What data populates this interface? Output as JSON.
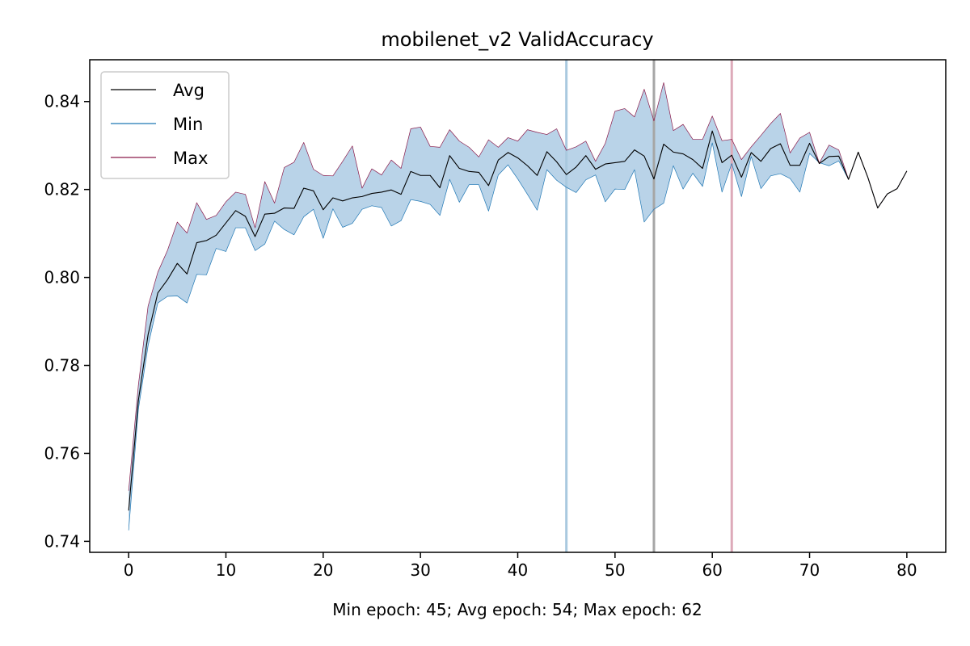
{
  "chart_data": {
    "type": "line",
    "title": "mobilenet_v2 ValidAccuracy",
    "xlabel": "Min epoch: 45; Avg epoch: 54; Max epoch: 62",
    "ylabel": "",
    "xlim": [
      -4,
      84
    ],
    "ylim": [
      0.7375,
      0.8495
    ],
    "xticks": [
      0,
      10,
      20,
      30,
      40,
      50,
      60,
      70,
      80
    ],
    "xtick_labels": [
      "0",
      "10",
      "20",
      "30",
      "40",
      "50",
      "60",
      "70",
      "80"
    ],
    "yticks": [
      0.74,
      0.76,
      0.78,
      0.8,
      0.82,
      0.84
    ],
    "ytick_labels": [
      "0.74",
      "0.76",
      "0.78",
      "0.80",
      "0.82",
      "0.84"
    ],
    "x": [
      0,
      1,
      2,
      3,
      4,
      5,
      6,
      7,
      8,
      9,
      10,
      11,
      12,
      13,
      14,
      15,
      16,
      17,
      18,
      19,
      20,
      21,
      22,
      23,
      24,
      25,
      26,
      27,
      28,
      29,
      30,
      31,
      32,
      33,
      34,
      35,
      36,
      37,
      38,
      39,
      40,
      41,
      42,
      43,
      44,
      45,
      46,
      47,
      48,
      49,
      50,
      51,
      52,
      53,
      54,
      55,
      56,
      57,
      58,
      59,
      60,
      61,
      62,
      63,
      64,
      65,
      66,
      67,
      68,
      69,
      70,
      71,
      72,
      73,
      74,
      75,
      76,
      77,
      78,
      79,
      80
    ],
    "series": [
      {
        "name": "Avg",
        "color": "#000000",
        "values": [
          0.747,
          0.772,
          0.787,
          0.7965,
          0.7995,
          0.8032,
          0.8008,
          0.8079,
          0.8084,
          0.8096,
          0.8124,
          0.8152,
          0.8139,
          0.8093,
          0.8144,
          0.8146,
          0.8158,
          0.8157,
          0.8203,
          0.8197,
          0.8154,
          0.8181,
          0.8174,
          0.8181,
          0.8184,
          0.8191,
          0.8194,
          0.8199,
          0.8189,
          0.8241,
          0.8232,
          0.8232,
          0.8204,
          0.8277,
          0.8248,
          0.8241,
          0.8239,
          0.8209,
          0.8267,
          0.8284,
          0.8272,
          0.8254,
          0.8232,
          0.8286,
          0.8263,
          0.8234,
          0.8251,
          0.8277,
          0.8246,
          0.8258,
          0.8261,
          0.8264,
          0.829,
          0.8276,
          0.8224,
          0.8303,
          0.8285,
          0.8281,
          0.8268,
          0.8248,
          0.8333,
          0.8261,
          0.8278,
          0.8228,
          0.8284,
          0.8264,
          0.8293,
          0.8304,
          0.8255,
          0.8255,
          0.8305,
          0.8259,
          0.8275,
          0.8276,
          0.8223,
          0.8285,
          0.8227,
          0.8158,
          0.819,
          0.8202,
          0.8242
        ]
      },
      {
        "name": "Min",
        "color": "#1f77b4",
        "values": [
          0.7425,
          0.77,
          0.7845,
          0.7942,
          0.7957,
          0.7958,
          0.7942,
          0.8007,
          0.8006,
          0.8066,
          0.8059,
          0.8113,
          0.8113,
          0.8061,
          0.8076,
          0.8128,
          0.8109,
          0.8097,
          0.8138,
          0.8155,
          0.8089,
          0.8156,
          0.8114,
          0.8123,
          0.8155,
          0.8163,
          0.8159,
          0.8117,
          0.8129,
          0.8177,
          0.8173,
          0.8166,
          0.8141,
          0.8223,
          0.8171,
          0.8211,
          0.8211,
          0.8151,
          0.8233,
          0.8256,
          0.8224,
          0.8189,
          0.8153,
          0.8245,
          0.8221,
          0.8205,
          0.8193,
          0.8222,
          0.8233,
          0.8172,
          0.8201,
          0.82,
          0.8245,
          0.8126,
          0.8155,
          0.8169,
          0.8254,
          0.8201,
          0.8237,
          0.8207,
          0.8306,
          0.8194,
          0.8259,
          0.8184,
          0.8275,
          0.8202,
          0.8231,
          0.8236,
          0.8225,
          0.8194,
          0.8282,
          0.8261,
          0.8254,
          0.8265,
          0.8223,
          0.8285,
          0.8227,
          0.8158,
          0.819,
          0.8202,
          0.8242
        ]
      },
      {
        "name": "Max",
        "color": "#8b1a4a",
        "values": [
          0.7515,
          0.7755,
          0.7935,
          0.8012,
          0.8062,
          0.8126,
          0.8101,
          0.817,
          0.8132,
          0.8141,
          0.8172,
          0.8194,
          0.8189,
          0.8113,
          0.8218,
          0.8169,
          0.825,
          0.8262,
          0.8307,
          0.8246,
          0.8232,
          0.8231,
          0.8264,
          0.8299,
          0.8203,
          0.8247,
          0.8233,
          0.8267,
          0.8248,
          0.8338,
          0.8342,
          0.8298,
          0.8296,
          0.8336,
          0.831,
          0.8296,
          0.8274,
          0.8313,
          0.8296,
          0.8318,
          0.831,
          0.8336,
          0.833,
          0.8325,
          0.8338,
          0.8289,
          0.8297,
          0.831,
          0.8264,
          0.8305,
          0.8378,
          0.8384,
          0.8365,
          0.8428,
          0.8356,
          0.8443,
          0.8334,
          0.8348,
          0.8314,
          0.8314,
          0.8367,
          0.8311,
          0.8314,
          0.8268,
          0.8297,
          0.8323,
          0.835,
          0.8373,
          0.8283,
          0.8317,
          0.833,
          0.826,
          0.8301,
          0.829,
          0.8223,
          0.8285,
          0.8227,
          0.8158,
          0.819,
          0.8202,
          0.8242
        ]
      }
    ],
    "band": {
      "lower": "Min",
      "upper": "Max",
      "fill": "#b9d3e8"
    },
    "vlines": [
      {
        "name": "Min epoch",
        "x": 45,
        "color": "#a9c9df"
      },
      {
        "name": "Avg epoch",
        "x": 54,
        "color": "#a6a6a6"
      },
      {
        "name": "Max epoch",
        "x": 62,
        "color": "#ddaab9"
      }
    ],
    "legend": {
      "placement": "top-left",
      "entries": [
        {
          "label": "Avg",
          "color": "#000000"
        },
        {
          "label": "Min",
          "color": "#1f77b4"
        },
        {
          "label": "Max",
          "color": "#8b1a4a"
        }
      ]
    },
    "grid": false
  }
}
